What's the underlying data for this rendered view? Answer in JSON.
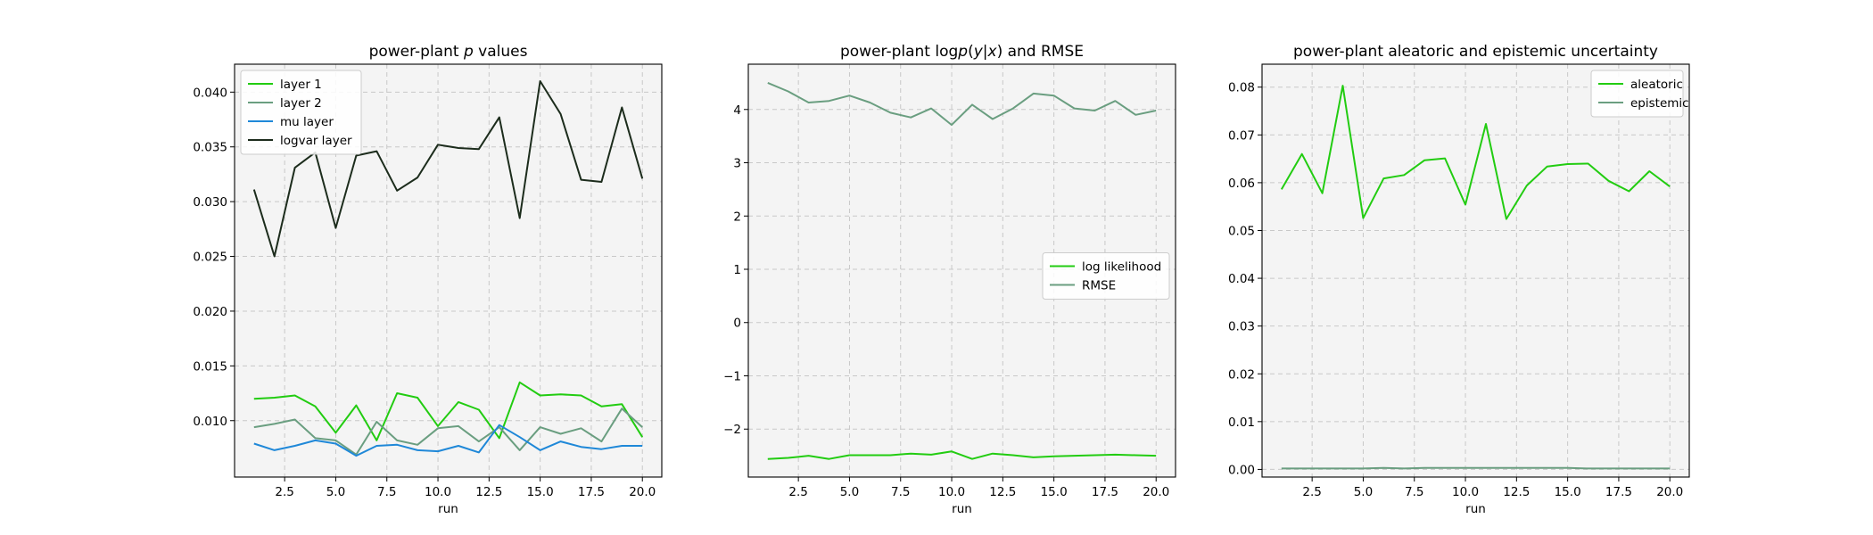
{
  "chart_data": [
    {
      "type": "line",
      "title": "power-plant p values",
      "title_parts": [
        "power-plant ",
        "p",
        " values"
      ],
      "xlabel": "run",
      "ylabel": "",
      "xlim": [
        0.05,
        20.95
      ],
      "ylim": [
        0.00485,
        0.04255
      ],
      "xticks": [
        2.5,
        5.0,
        7.5,
        10.0,
        12.5,
        15.0,
        17.5,
        20.0
      ],
      "xtick_labels": [
        "2.5",
        "5.0",
        "7.5",
        "10.0",
        "12.5",
        "15.0",
        "17.5",
        "20.0"
      ],
      "yticks": [
        0.01,
        0.015,
        0.02,
        0.025,
        0.03,
        0.035,
        0.04
      ],
      "ytick_labels": [
        "0.010",
        "0.015",
        "0.020",
        "0.025",
        "0.030",
        "0.035",
        "0.040"
      ],
      "grid": true,
      "legend_position": "upper-left",
      "x": [
        1,
        2,
        3,
        4,
        5,
        6,
        7,
        8,
        9,
        10,
        11,
        12,
        13,
        14,
        15,
        16,
        17,
        18,
        19,
        20
      ],
      "series": [
        {
          "name": "layer 1",
          "color": "#22cc11",
          "values": [
            0.012,
            0.0121,
            0.0123,
            0.0113,
            0.0089,
            0.0114,
            0.0082,
            0.0125,
            0.0121,
            0.0095,
            0.0117,
            0.011,
            0.0084,
            0.0135,
            0.0123,
            0.0124,
            0.0123,
            0.0113,
            0.0115,
            0.0085
          ]
        },
        {
          "name": "layer 2",
          "color": "#6a9e80",
          "values": [
            0.0094,
            0.0097,
            0.0101,
            0.0084,
            0.0082,
            0.0069,
            0.0099,
            0.0082,
            0.0078,
            0.0093,
            0.0095,
            0.0081,
            0.0094,
            0.0073,
            0.0094,
            0.0088,
            0.0093,
            0.0081,
            0.0111,
            0.0094
          ]
        },
        {
          "name": "mu layer",
          "color": "#1f88d8",
          "values": [
            0.0079,
            0.0073,
            0.0077,
            0.0082,
            0.0079,
            0.0068,
            0.0077,
            0.0078,
            0.0073,
            0.0072,
            0.0077,
            0.0071,
            0.0096,
            0.0085,
            0.0073,
            0.0081,
            0.0076,
            0.0074,
            0.0077,
            0.0077
          ]
        },
        {
          "name": "logvar layer",
          "color": "#1c2c1c",
          "values": [
            0.0311,
            0.025,
            0.0331,
            0.0345,
            0.0276,
            0.0342,
            0.0346,
            0.031,
            0.0322,
            0.0352,
            0.0349,
            0.0348,
            0.0377,
            0.0285,
            0.041,
            0.038,
            0.032,
            0.0318,
            0.0386,
            0.0321
          ]
        }
      ]
    },
    {
      "type": "line",
      "title": "power-plant logp(y|x) and RMSE",
      "title_parts": [
        "power-plant log",
        "p",
        "(",
        "y",
        "|",
        "x",
        ") and RMSE"
      ],
      "xlabel": "run",
      "ylabel": "",
      "xlim": [
        0.05,
        20.95
      ],
      "ylim": [
        -2.9,
        4.85
      ],
      "xticks": [
        2.5,
        5.0,
        7.5,
        10.0,
        12.5,
        15.0,
        17.5,
        20.0
      ],
      "xtick_labels": [
        "2.5",
        "5.0",
        "7.5",
        "10.0",
        "12.5",
        "15.0",
        "17.5",
        "20.0"
      ],
      "yticks": [
        -2,
        -1,
        0,
        1,
        2,
        3,
        4
      ],
      "ytick_labels": [
        "−2",
        "−1",
        "0",
        "1",
        "2",
        "3",
        "4"
      ],
      "grid": true,
      "legend_position": "center-right",
      "x": [
        1,
        2,
        3,
        4,
        5,
        6,
        7,
        8,
        9,
        10,
        11,
        12,
        13,
        14,
        15,
        16,
        17,
        18,
        19,
        20
      ],
      "series": [
        {
          "name": "log likelihood",
          "color": "#22cc11",
          "values": [
            -2.56,
            -2.54,
            -2.5,
            -2.56,
            -2.49,
            -2.49,
            -2.49,
            -2.46,
            -2.48,
            -2.42,
            -2.56,
            -2.46,
            -2.49,
            -2.53,
            -2.51,
            -2.5,
            -2.49,
            -2.48,
            -2.49,
            -2.5
          ]
        },
        {
          "name": "RMSE",
          "color": "#6a9e80",
          "values": [
            4.5,
            4.34,
            4.13,
            4.16,
            4.26,
            4.13,
            3.94,
            3.85,
            4.02,
            3.71,
            4.09,
            3.82,
            4.02,
            4.3,
            4.26,
            4.02,
            3.98,
            4.16,
            3.9,
            3.98
          ]
        }
      ]
    },
    {
      "type": "line",
      "title": "power-plant aleatoric and epistemic uncertainty",
      "title_parts": [
        "power-plant aleatoric and epistemic uncertainty"
      ],
      "xlabel": "run",
      "ylabel": "",
      "xlim": [
        0.05,
        20.95
      ],
      "ylim": [
        -0.0016,
        0.0848
      ],
      "xticks": [
        2.5,
        5.0,
        7.5,
        10.0,
        12.5,
        15.0,
        17.5,
        20.0
      ],
      "xtick_labels": [
        "2.5",
        "5.0",
        "7.5",
        "10.0",
        "12.5",
        "15.0",
        "17.5",
        "20.0"
      ],
      "yticks": [
        0.0,
        0.01,
        0.02,
        0.03,
        0.04,
        0.05,
        0.06,
        0.07,
        0.08
      ],
      "ytick_labels": [
        "0.00",
        "0.01",
        "0.02",
        "0.03",
        "0.04",
        "0.05",
        "0.06",
        "0.07",
        "0.08"
      ],
      "grid": true,
      "legend_position": "upper-right",
      "x": [
        1,
        2,
        3,
        4,
        5,
        6,
        7,
        8,
        9,
        10,
        11,
        12,
        13,
        14,
        15,
        16,
        17,
        18,
        19,
        20
      ],
      "series": [
        {
          "name": "aleatoric",
          "color": "#22cc11",
          "values": [
            0.0586,
            0.066,
            0.0578,
            0.0803,
            0.0526,
            0.0609,
            0.0616,
            0.0647,
            0.0651,
            0.0554,
            0.0723,
            0.0524,
            0.0594,
            0.0634,
            0.0639,
            0.064,
            0.0604,
            0.0582,
            0.0624,
            0.0592
          ]
        },
        {
          "name": "epistemic",
          "color": "#6a9e80",
          "values": [
            0.0002,
            0.0002,
            0.0002,
            0.0002,
            0.0002,
            0.0003,
            0.0002,
            0.0003,
            0.0003,
            0.0003,
            0.0003,
            0.0003,
            0.0003,
            0.0003,
            0.0003,
            0.0002,
            0.0002,
            0.0002,
            0.0002,
            0.0002
          ]
        }
      ]
    }
  ]
}
